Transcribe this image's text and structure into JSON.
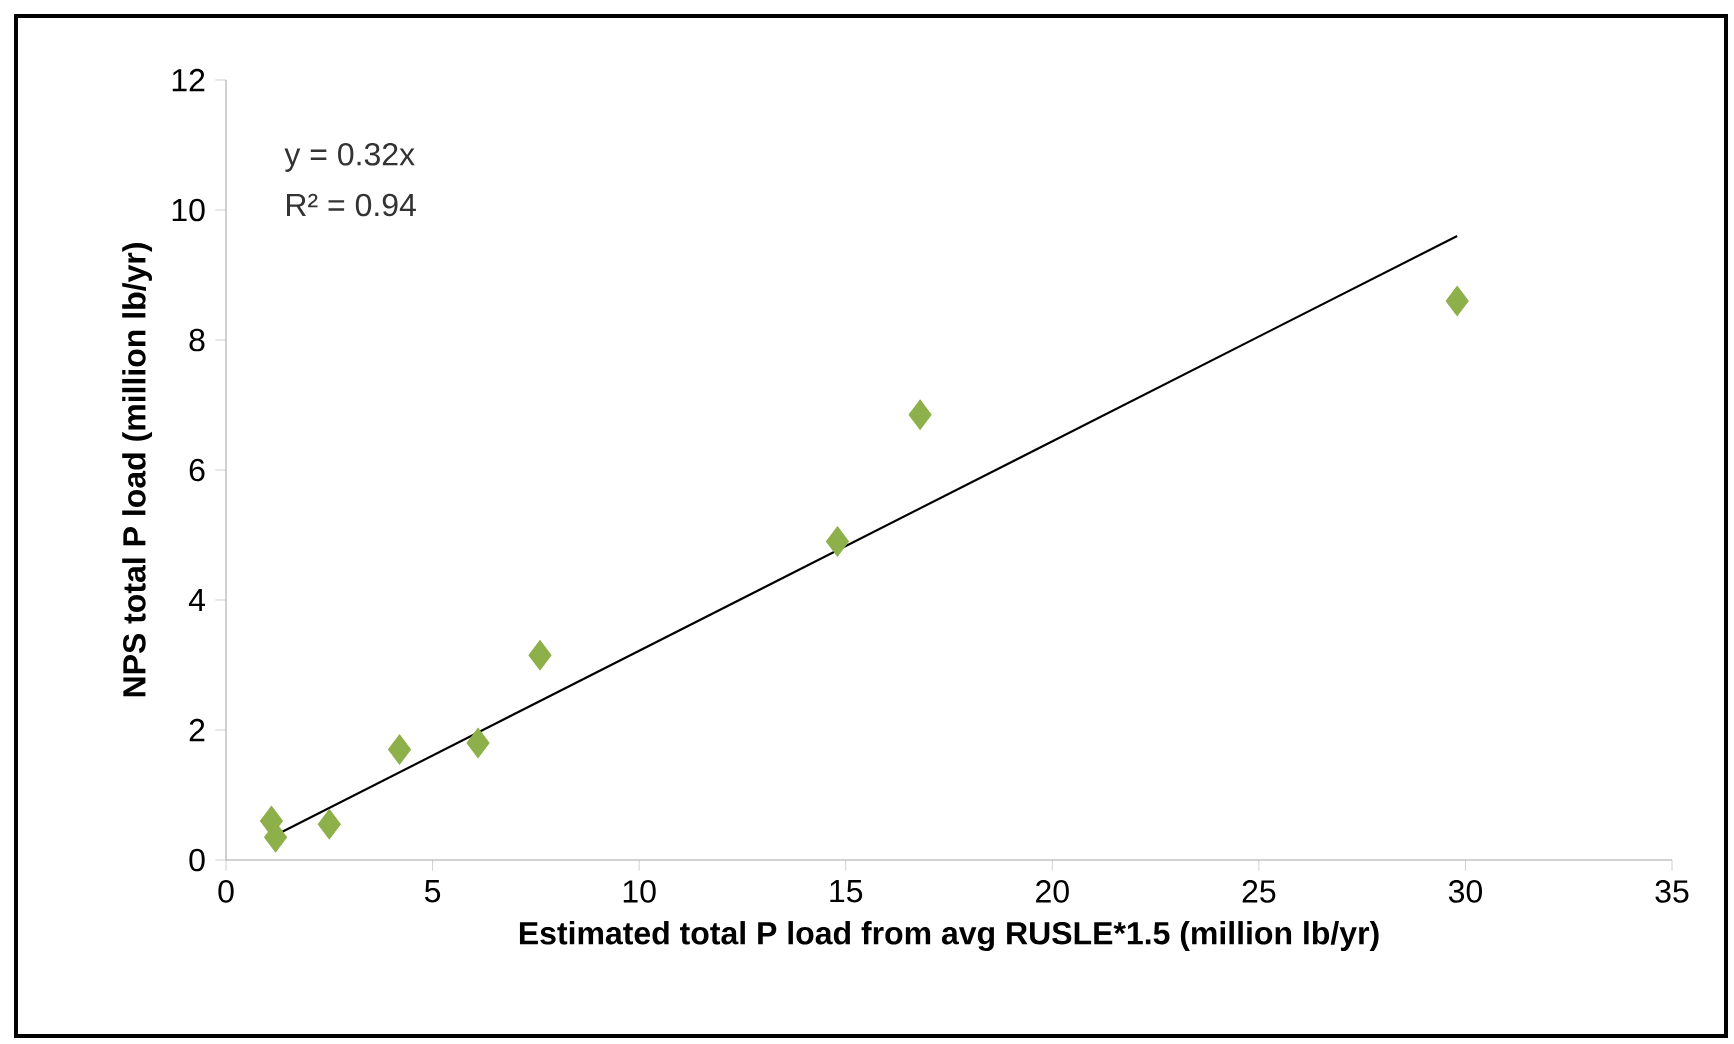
{
  "chart_data": {
    "type": "scatter",
    "xlabel": "Estimated total P load from avg RUSLE*1.5 (million lb/yr)",
    "ylabel": "NPS total P load (million lb/yr)",
    "annotations": [
      "y = 0.32x",
      "R² = 0.94"
    ],
    "series": [
      {
        "color": "#8db04a",
        "marker": "diamond",
        "x": [
          1.1,
          1.2,
          2.5,
          4.2,
          6.1,
          7.6,
          14.8,
          16.8,
          29.8
        ],
        "values": [
          0.6,
          0.35,
          0.55,
          1.7,
          1.8,
          3.15,
          4.9,
          6.85,
          8.6
        ]
      },
      {
        "type": "line",
        "color": "#000000",
        "x": [
          1.1,
          29.8
        ],
        "values": [
          0.35,
          9.6
        ]
      }
    ],
    "xlim": [
      0,
      35
    ],
    "ylim": [
      0,
      12
    ],
    "xticks": [
      0,
      5,
      10,
      15,
      20,
      25,
      30,
      35
    ],
    "yticks": [
      0,
      2,
      4,
      6,
      8,
      10,
      12
    ],
    "grid": false
  }
}
